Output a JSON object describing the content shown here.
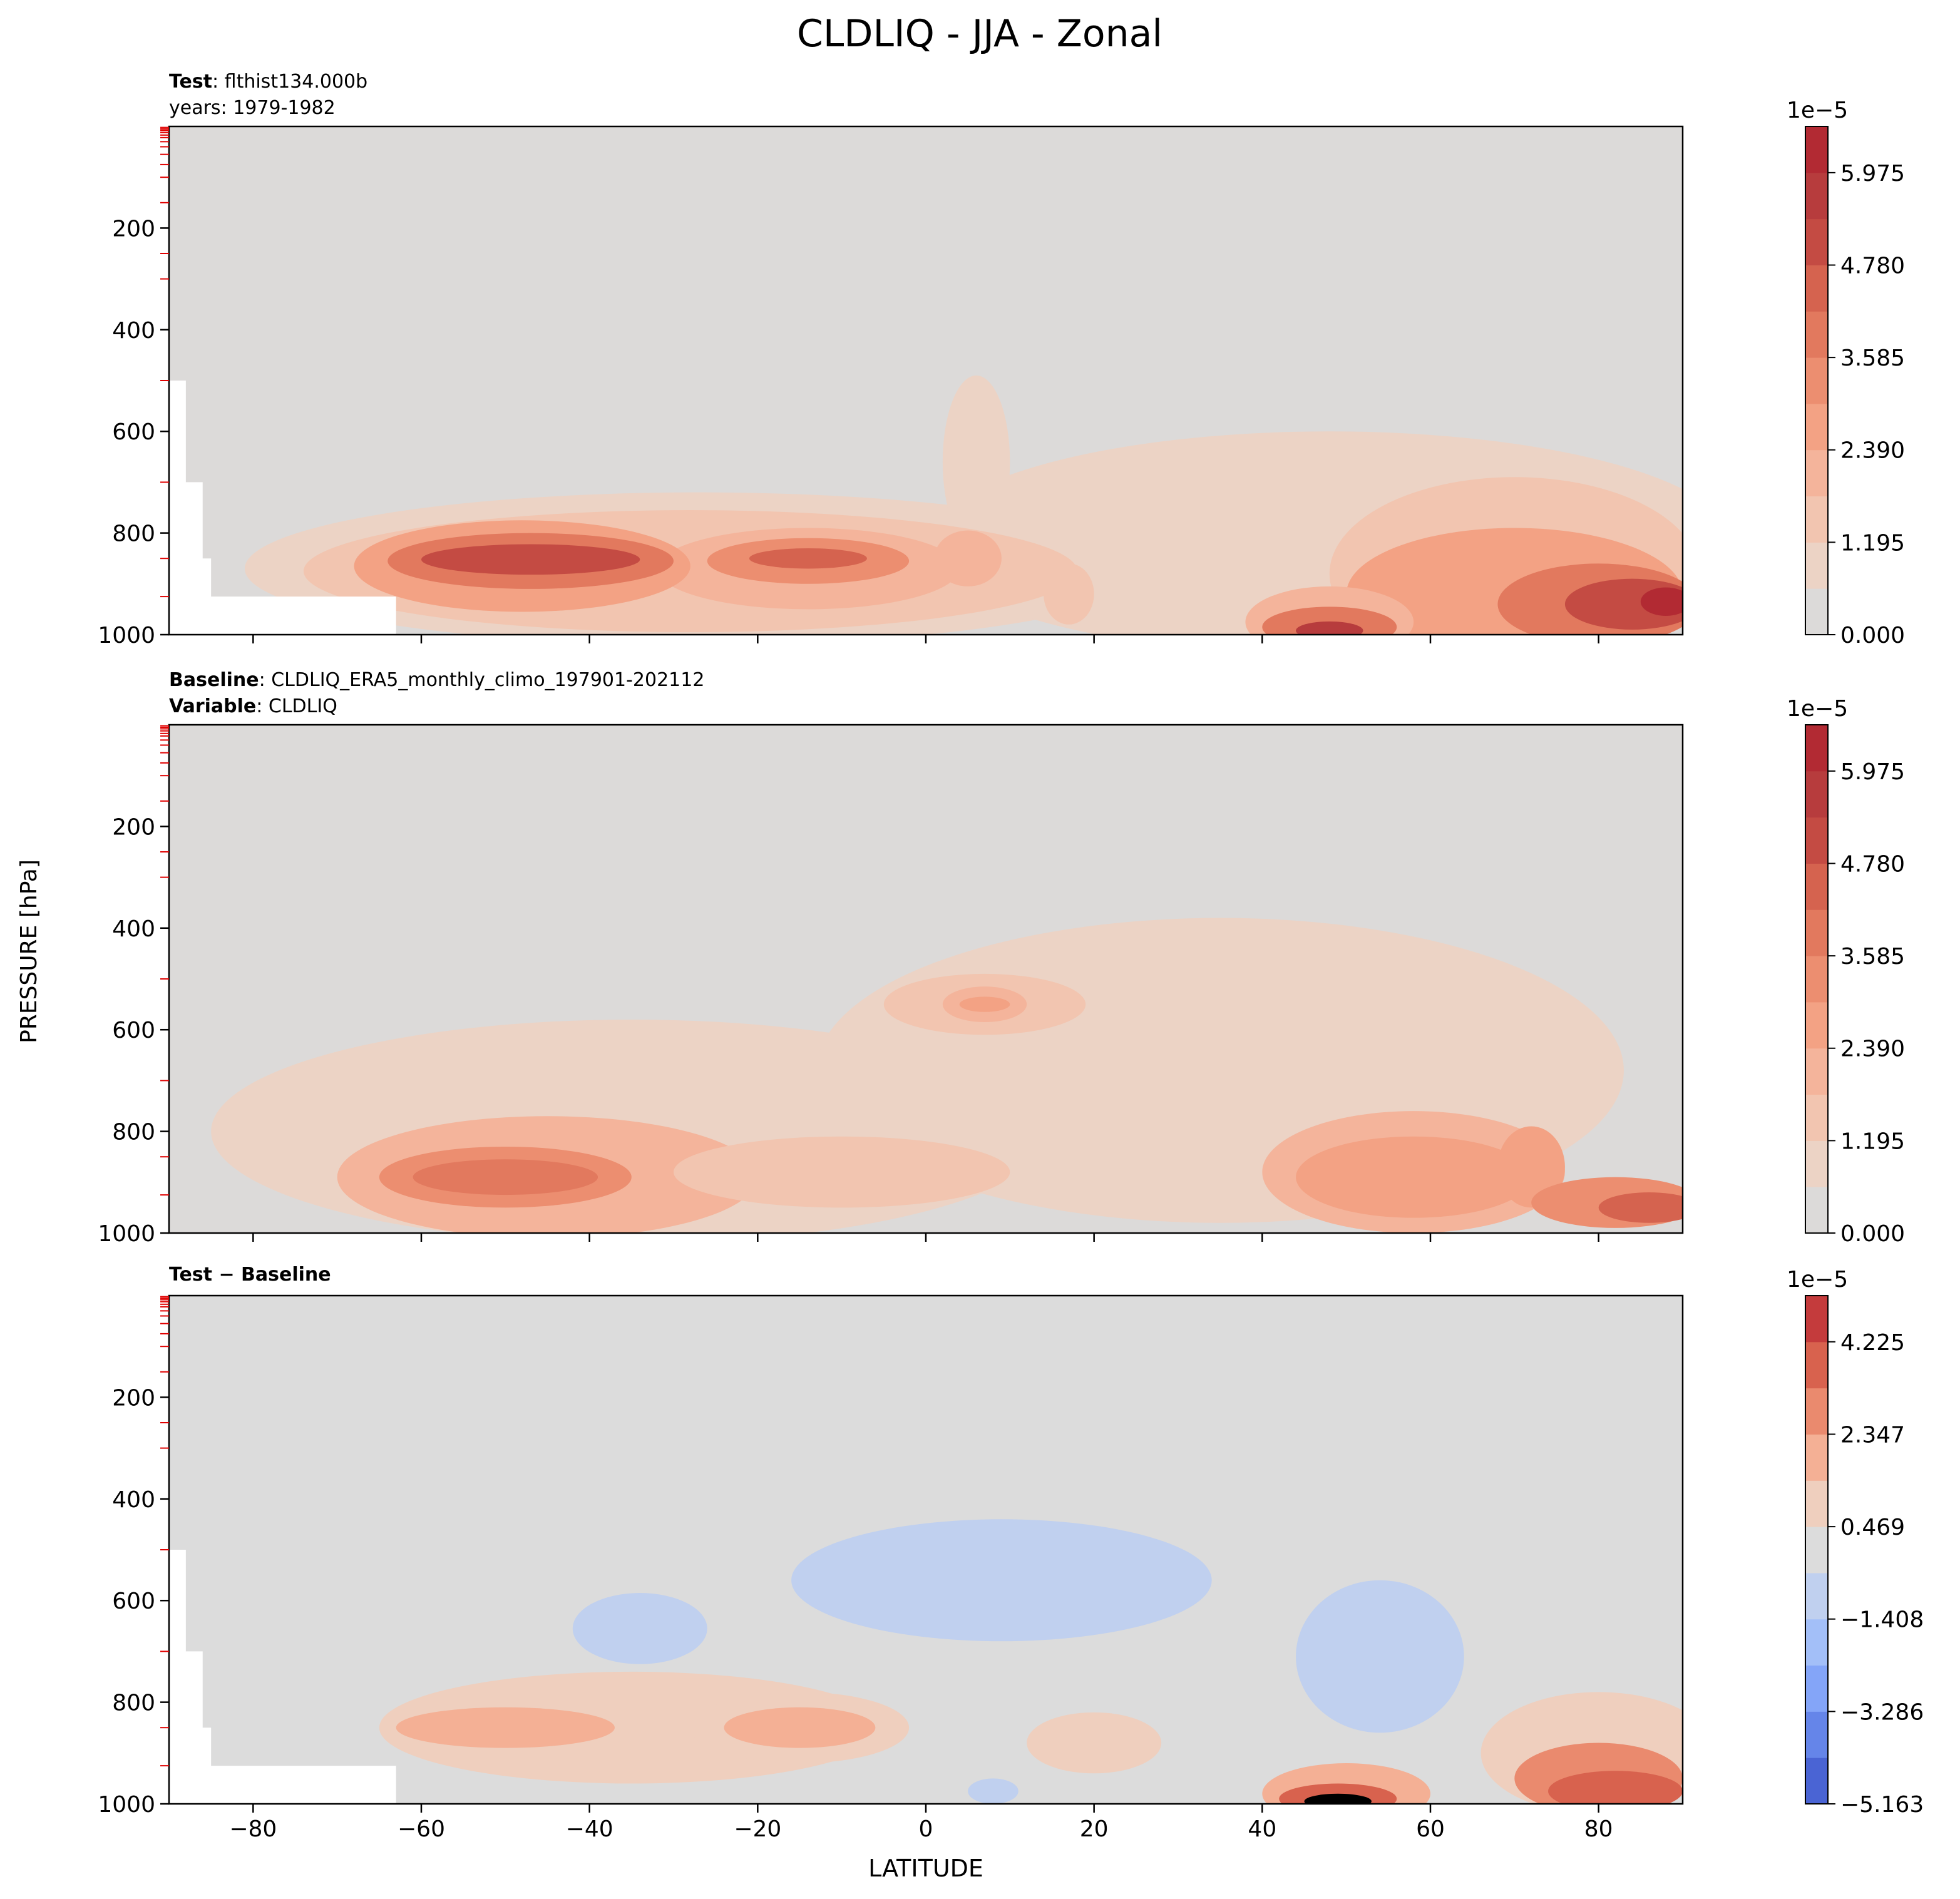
{
  "figure": {
    "title": "CLDLIQ - JJA - Zonal",
    "ylabel": "PRESSURE [hPa]",
    "xlabel": "LATITUDE",
    "x_ticks": [
      -80,
      -60,
      -40,
      -20,
      0,
      20,
      40,
      60,
      80
    ],
    "x_tick_labels": [
      "−80",
      "−60",
      "−40",
      "−20",
      "0",
      "20",
      "40",
      "60",
      "80"
    ],
    "y_ticks": [
      200,
      400,
      600,
      800,
      1000
    ],
    "y_tick_labels": [
      "200",
      "400",
      "600",
      "800",
      "1000"
    ]
  },
  "panels": [
    {
      "header_line1_bold": "Test",
      "header_line1_text": ": flthist134.000b",
      "header_line2_text": "years: 1979-1982",
      "colorbar_exponent": "1e−5",
      "colorbar_tick_labels": [
        "5.975",
        "4.780",
        "3.585",
        "2.390",
        "1.195",
        "0.000"
      ]
    },
    {
      "header_line1_bold": "Baseline",
      "header_line1_text": ": CLDLIQ_ERA5_monthly_climo_197901-202112",
      "header_line2_bold": "Variable",
      "header_line2_text": ": CLDLIQ",
      "colorbar_exponent": "1e−5",
      "colorbar_tick_labels": [
        "5.975",
        "4.780",
        "3.585",
        "2.390",
        "1.195",
        "0.000"
      ]
    },
    {
      "header_line1_bold": "Test − Baseline",
      "colorbar_exponent": "1e−5",
      "colorbar_tick_labels": [
        "4.225",
        "2.347",
        "0.469",
        "−1.408",
        "−3.286",
        "−5.163"
      ]
    }
  ],
  "chart_data": [
    {
      "type": "heatmap",
      "name": "Test",
      "x_unit": "latitude",
      "y_unit": "hPa",
      "xlim": [
        -90,
        90
      ],
      "ylim": [
        1000,
        0
      ],
      "colorbar_levels": [
        0.0,
        0.598,
        1.195,
        1.793,
        2.39,
        2.988,
        3.585,
        4.183,
        4.78,
        5.378,
        5.975,
        6.573
      ],
      "colorbar_colors": [
        "#dcdad9",
        "#ecd3c5",
        "#f2c5b0",
        "#f4b49b",
        "#f3a284",
        "#ec8e70",
        "#e2795e",
        "#d5634f",
        "#c44b43",
        "#b73c3d",
        "#b22a33"
      ],
      "masked_region": {
        "lat_max": -63,
        "p_min": 500
      },
      "features": [
        {
          "desc": "southern midlatitude max",
          "lat": [
            -60,
            -38
          ],
          "p": 850,
          "level": 7
        },
        {
          "desc": "subtropical south",
          "lat": [
            -25,
            -8
          ],
          "p": 850,
          "level": 6
        },
        {
          "desc": "equatorial plume",
          "lat": [
            3,
            9
          ],
          "p_top": 500,
          "level": 1
        },
        {
          "desc": "northern midlatitude near-surface",
          "lat": [
            43,
            52
          ],
          "p": 990,
          "level": 9
        },
        {
          "desc": "arctic low-level max",
          "lat": [
            75,
            90
          ],
          "p": 930,
          "level": 9
        }
      ]
    },
    {
      "type": "heatmap",
      "name": "Baseline",
      "x_unit": "latitude",
      "y_unit": "hPa",
      "xlim": [
        -90,
        90
      ],
      "ylim": [
        1000,
        0
      ],
      "colorbar_levels": [
        0.0,
        0.598,
        1.195,
        1.793,
        2.39,
        2.988,
        3.585,
        4.183,
        4.78,
        5.378,
        5.975,
        6.573
      ],
      "colorbar_colors": [
        "#dcdad9",
        "#ecd3c5",
        "#f2c5b0",
        "#f4b49b",
        "#f3a284",
        "#ec8e70",
        "#e2795e",
        "#d5634f",
        "#c44b43",
        "#b73c3d",
        "#b22a33"
      ],
      "features": [
        {
          "desc": "southern midlatitude max",
          "lat": [
            -60,
            -40
          ],
          "p": 890,
          "level": 5
        },
        {
          "desc": "tropical mid-level",
          "lat": [
            2,
            10
          ],
          "p": 550,
          "level": 4
        },
        {
          "desc": "northern midlatitude",
          "lat": [
            45,
            70
          ],
          "p": 900,
          "level": 4
        },
        {
          "desc": "arctic near-surface",
          "lat": [
            75,
            90
          ],
          "p": 950,
          "level": 6
        }
      ]
    },
    {
      "type": "heatmap",
      "name": "Test − Baseline",
      "x_unit": "latitude",
      "y_unit": "hPa",
      "xlim": [
        -90,
        90
      ],
      "ylim": [
        1000,
        0
      ],
      "colorbar_levels": [
        -5.163,
        -4.224,
        -3.286,
        -2.347,
        -1.408,
        -0.469,
        0.469,
        1.408,
        2.347,
        3.286,
        4.225,
        5.163
      ],
      "colorbar_colors": [
        "#4a64d4",
        "#6585e9",
        "#84a5f8",
        "#a3bff8",
        "#c0d0ef",
        "#dcdcdc",
        "#efcfbe",
        "#f4b095",
        "#ea8a6e",
        "#d8624e",
        "#c43b3c"
      ],
      "masked_region": {
        "lat_max": -63,
        "p_min": 500
      },
      "features": [
        {
          "desc": "negative south",
          "lat": [
            -40,
            -28
          ],
          "p": 650,
          "level": -1
        },
        {
          "desc": "negative tropical mid-level",
          "lat": [
            -10,
            28
          ],
          "p": 550,
          "level": -1
        },
        {
          "desc": "negative northern midlatitude",
          "lat": [
            45,
            63
          ],
          "p": 700,
          "level": -1
        },
        {
          "desc": "positive southern",
          "lat": [
            -60,
            -40
          ],
          "p": 850,
          "level": 2
        },
        {
          "desc": "positive subtropical",
          "lat": [
            -22,
            -5
          ],
          "p": 850,
          "level": 2
        },
        {
          "desc": "positive northern near-surface",
          "lat": [
            42,
            55
          ],
          "p": 990,
          "level": 5
        },
        {
          "desc": "positive arctic",
          "lat": [
            75,
            90
          ],
          "p": 960,
          "level": 4
        }
      ]
    }
  ]
}
